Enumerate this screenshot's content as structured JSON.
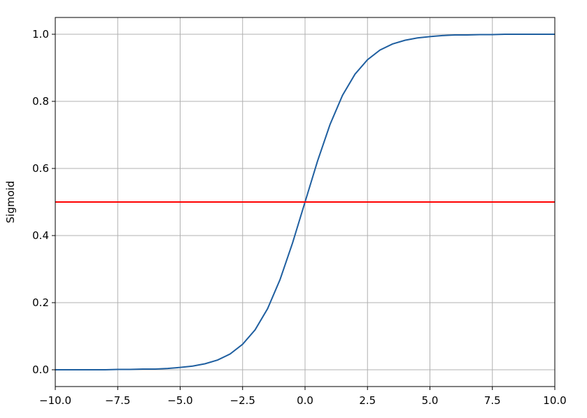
{
  "chart_data": {
    "type": "line",
    "y_label": "Sigmoid",
    "x": [
      -10,
      -9.5,
      -9,
      -8.5,
      -8,
      -7.5,
      -7,
      -6.5,
      -6,
      -5.5,
      -5,
      -4.5,
      -4,
      -3.5,
      -3,
      -2.5,
      -2,
      -1.5,
      -1,
      -0.5,
      0,
      0.5,
      1,
      1.5,
      2,
      2.5,
      3,
      3.5,
      4,
      4.5,
      5,
      5.5,
      6,
      6.5,
      7,
      7.5,
      8,
      8.5,
      9,
      9.5,
      10
    ],
    "series": [
      {
        "color": "#1f5fa0",
        "values": [
          0.0,
          0.0,
          0.0,
          0.0,
          0.0,
          0.001,
          0.001,
          0.002,
          0.002,
          0.004,
          0.007,
          0.011,
          0.018,
          0.029,
          0.047,
          0.076,
          0.119,
          0.182,
          0.269,
          0.378,
          0.5,
          0.622,
          0.731,
          0.818,
          0.881,
          0.924,
          0.953,
          0.971,
          0.982,
          0.989,
          0.993,
          0.996,
          0.998,
          0.998,
          0.999,
          0.999,
          1.0,
          1.0,
          1.0,
          1.0,
          1.0
        ]
      }
    ],
    "hlines": [
      {
        "value": 0.5,
        "color": "#ff0000"
      }
    ],
    "xlim": [
      -10,
      10
    ],
    "ylim": [
      -0.05,
      1.05
    ],
    "xticks": [
      {
        "value": -10,
        "label": "−10.0"
      },
      {
        "value": -7.5,
        "label": "−7.5"
      },
      {
        "value": -5,
        "label": "−5.0"
      },
      {
        "value": -2.5,
        "label": "−2.5"
      },
      {
        "value": 0,
        "label": "0.0"
      },
      {
        "value": 2.5,
        "label": "2.5"
      },
      {
        "value": 5,
        "label": "5.0"
      },
      {
        "value": 7.5,
        "label": "7.5"
      },
      {
        "value": 10,
        "label": "10.0"
      }
    ],
    "yticks": [
      {
        "value": 0,
        "label": "0.0"
      },
      {
        "value": 0.2,
        "label": "0.2"
      },
      {
        "value": 0.4,
        "label": "0.4"
      },
      {
        "value": 0.6,
        "label": "0.6"
      },
      {
        "value": 0.8,
        "label": "0.8"
      },
      {
        "value": 1,
        "label": "1.0"
      }
    ],
    "grid": true
  }
}
